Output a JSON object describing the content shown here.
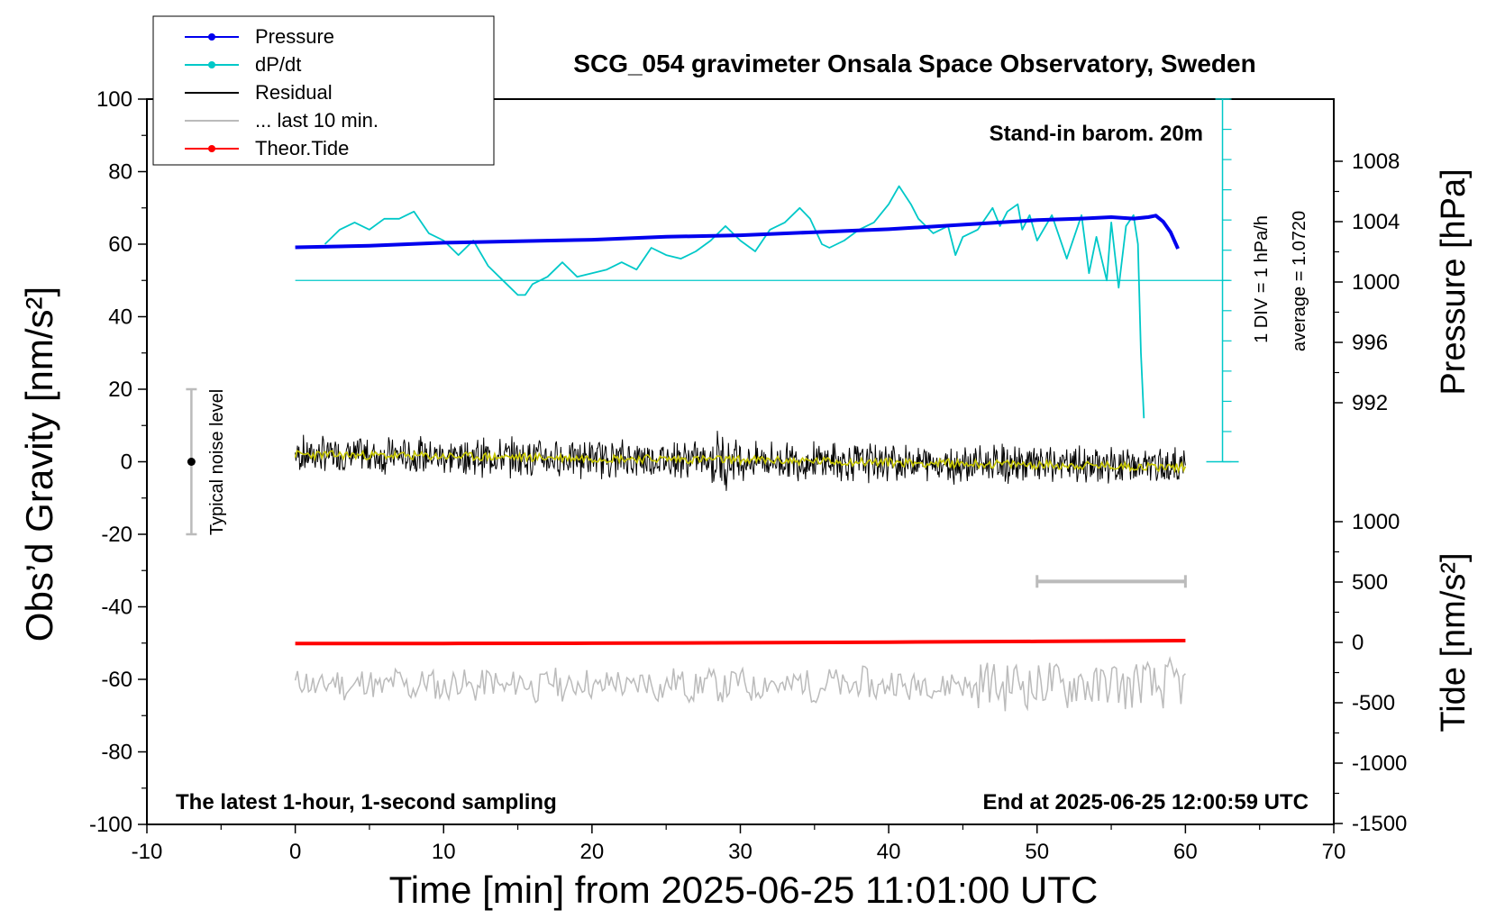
{
  "chart_data": {
    "type": "line",
    "title": "SCG_054 gravimeter Onsala Space Observatory, Sweden",
    "xlabel": "Time [min] from 2025-06-25 11:01:00 UTC",
    "ylabel": "Obs’d Gravity [nm/s²]",
    "ylabel_right_top": "Pressure [hPa]",
    "ylabel_right_bottom": "Tide [nm/s²]",
    "xlim": [
      -10,
      70
    ],
    "ylim": [
      -100,
      100
    ],
    "x_ticks": [
      "-10",
      "0",
      "10",
      "20",
      "30",
      "40",
      "50",
      "60",
      "70"
    ],
    "y_ticks": [
      "100",
      "80",
      "60",
      "40",
      "20",
      "0",
      "-20",
      "-40",
      "-60",
      "-80",
      "-100"
    ],
    "pressure_ticks": [
      "1008",
      "1004",
      "1000",
      "996",
      "992"
    ],
    "tide_ticks": [
      "1000",
      "500",
      "0",
      "-500",
      "-1000",
      "-1500"
    ],
    "grid": false,
    "legend_position": "top-left",
    "legend": [
      {
        "label": "Pressure",
        "color": "#0000ee",
        "style": "line-dot"
      },
      {
        "label": "dP/dt",
        "color": "#00c8c8",
        "style": "line-dot"
      },
      {
        "label": "Residual",
        "color": "#000000",
        "style": "line"
      },
      {
        "label": "... last 10 min.",
        "color": "#bbbbbb",
        "style": "line"
      },
      {
        "label": "Theor.Tide",
        "color": "#ff0000",
        "style": "line-dot"
      }
    ],
    "annotations": {
      "barometer": "Stand-in barom. 20m",
      "scale_div": "1 DIV = 1 hPa/h",
      "scale_avg": "average = 1.0720",
      "noise": "Typical noise level",
      "sampling": "The latest 1-hour, 1-second sampling",
      "end_time": "End at 2025-06-25 12:00:59 UTC"
    },
    "series": [
      {
        "name": "Pressure",
        "axis": "pressure_hPa",
        "color": "#0000ee",
        "x": [
          0,
          5,
          10,
          15,
          20,
          25,
          30,
          35,
          40,
          45,
          50,
          53,
          55,
          56.5,
          57.5,
          58,
          58.5,
          59,
          59.5
        ],
        "values": [
          1002.3,
          1002.4,
          1002.6,
          1002.7,
          1002.8,
          1003.0,
          1003.1,
          1003.3,
          1003.5,
          1003.8,
          1004.1,
          1004.2,
          1004.3,
          1004.2,
          1004.3,
          1004.4,
          1004.0,
          1003.3,
          1002.2
        ]
      },
      {
        "name": "dP/dt",
        "axis": "gravity_plot_units",
        "color": "#00c8c8",
        "reference_level": 50,
        "x": [
          2,
          3,
          4,
          5,
          6,
          7,
          8,
          9,
          10,
          11,
          12,
          13,
          14,
          15,
          15.5,
          16,
          17,
          18,
          19,
          20,
          21,
          22,
          23,
          24,
          25,
          26,
          27,
          28,
          29,
          30,
          31,
          32,
          33,
          34,
          34.7,
          35.5,
          36,
          37,
          38,
          39,
          40,
          40.7,
          41.5,
          42,
          43,
          44,
          44.5,
          45,
          46,
          47,
          47.5,
          48,
          48.7,
          49,
          49.5,
          50,
          51,
          52,
          53,
          53.5,
          54,
          54.7,
          55,
          55.5,
          56,
          56.5,
          56.8,
          57,
          57.2
        ],
        "values": [
          60,
          64,
          66,
          64,
          67,
          67,
          69,
          63,
          61,
          57,
          61,
          54,
          50,
          46,
          46,
          49,
          51,
          55,
          51,
          52,
          53,
          55,
          53,
          59,
          57,
          56,
          58,
          61,
          65,
          61,
          58,
          64,
          66,
          70,
          67,
          60,
          59,
          61,
          64,
          66,
          71,
          76,
          71,
          67,
          63,
          65,
          57,
          62,
          64,
          70,
          65,
          69,
          71,
          64,
          68,
          61,
          68,
          56,
          68,
          52,
          62,
          50,
          66,
          48,
          65,
          68,
          60,
          30,
          12
        ]
      },
      {
        "name": "Residual",
        "axis": "gravity_nm_s2",
        "color": "#000000",
        "x_range": [
          0,
          60
        ],
        "mean_trend": [
          {
            "x": 0,
            "y": 2
          },
          {
            "x": 30,
            "y": 0.5
          },
          {
            "x": 60,
            "y": -1.5
          }
        ],
        "peak_to_peak": 10
      },
      {
        "name": "Residual (smoothed)",
        "axis": "gravity_nm_s2",
        "color": "#c8c800",
        "x_range": [
          0,
          60
        ],
        "mean_trend": [
          {
            "x": 0,
            "y": 2
          },
          {
            "x": 30,
            "y": 0.5
          },
          {
            "x": 60,
            "y": -1.5
          }
        ]
      },
      {
        "name": "Theor.Tide",
        "axis": "tide_nm_s2",
        "color": "#ff0000",
        "x": [
          0,
          10,
          20,
          30,
          40,
          50,
          60
        ],
        "values": [
          -10,
          -9,
          -7,
          -3,
          2,
          8,
          15
        ]
      },
      {
        "name": "... last 10 min.",
        "axis": "gravity_plot_units",
        "color": "#bbbbbb",
        "x_range": [
          0,
          60
        ],
        "center": -61.5,
        "amplitude": 4
      }
    ],
    "noise_bar": {
      "x": -7,
      "ymin": -20,
      "ymax": 20,
      "center": 0
    },
    "ten_min_bar": {
      "x_start": 50,
      "x_end": 60,
      "y": -33
    }
  }
}
